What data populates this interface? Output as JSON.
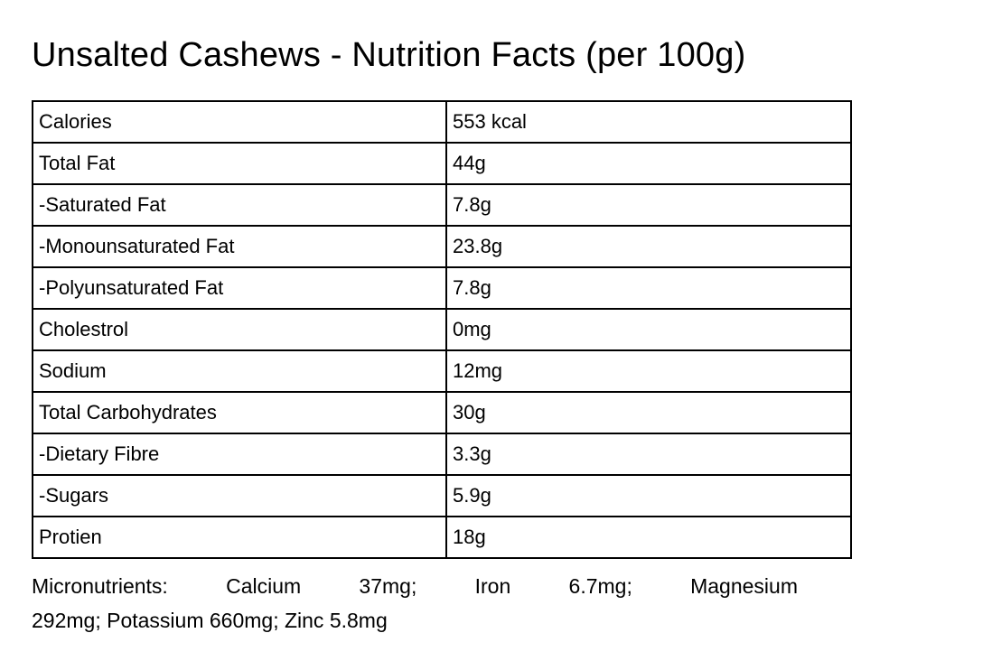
{
  "title": "Unsalted Cashews - Nutrition Facts (per 100g)",
  "table": {
    "rows": [
      {
        "label": "Calories",
        "value": "553 kcal"
      },
      {
        "label": "Total Fat",
        "value": "44g"
      },
      {
        "label": "-Saturated Fat",
        "value": "7.8g"
      },
      {
        "label": "-Monounsaturated Fat",
        "value": "23.8g"
      },
      {
        "label": "-Polyunsaturated Fat",
        "value": "7.8g"
      },
      {
        "label": "Cholestrol",
        "value": "0mg"
      },
      {
        "label": "Sodium",
        "value": "12mg"
      },
      {
        "label": "Total Carbohydrates",
        "value": "30g"
      },
      {
        "label": "-Dietary Fibre",
        "value": "3.3g"
      },
      {
        "label": "-Sugars",
        "value": "5.9g"
      },
      {
        "label": "Protien",
        "value": "18g"
      }
    ]
  },
  "micronutrients": {
    "line1": "Micronutrients: Calcium 37mg; Iron 6.7mg; Magnesium",
    "line2": "292mg; Potassium 660mg; Zinc 5.8mg"
  },
  "colors": {
    "text": "#000000",
    "border": "#000000",
    "background": "#ffffff"
  }
}
